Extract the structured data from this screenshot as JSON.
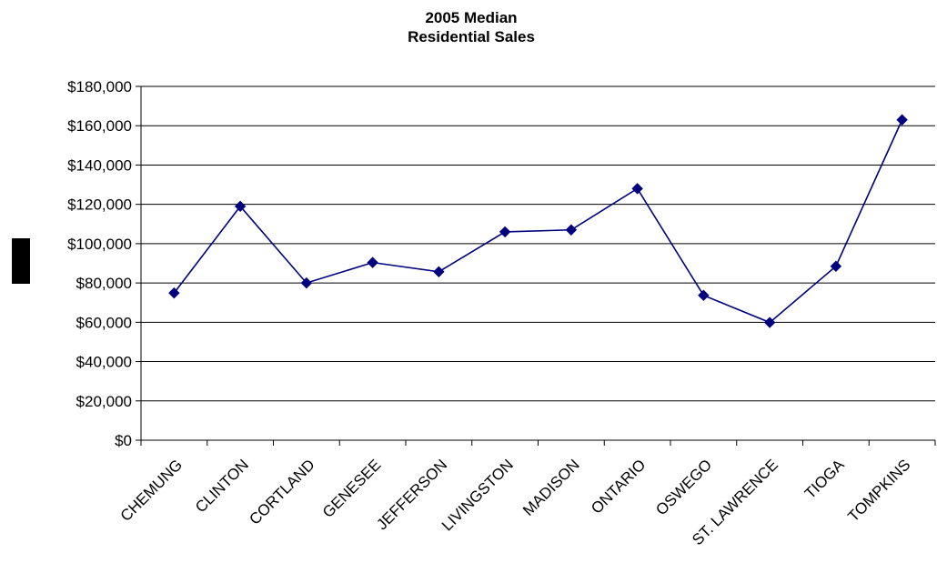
{
  "chart_data": {
    "type": "line",
    "title": [
      "2005 Median",
      "Residential Sales"
    ],
    "xlabel": "",
    "ylabel": "",
    "categories": [
      "CHEMUNG",
      "CLINTON",
      "CORTLAND",
      "GENESEE",
      "JEFFERSON",
      "LIVINGSTON",
      "MADISON",
      "ONTARIO",
      "OSWEGO",
      "ST. LAWRENCE",
      "TIOGA",
      "TOMPKINS"
    ],
    "series": [
      {
        "values": [
          74900,
          119000,
          80000,
          90400,
          85700,
          106000,
          107000,
          128000,
          73700,
          59900,
          88500,
          163000
        ],
        "color": "#00007F",
        "marker": "diamond"
      }
    ],
    "ylim": [
      0,
      180000
    ],
    "yticks": [
      0,
      20000,
      40000,
      60000,
      80000,
      100000,
      120000,
      140000,
      160000,
      180000
    ],
    "ytick_labels": [
      "$0",
      "$20,000",
      "$40,000",
      "$60,000",
      "$80,000",
      "$100,000",
      "$120,000",
      "$140,000",
      "$160,000",
      "$180,000"
    ],
    "grid": true,
    "legend": "left"
  }
}
